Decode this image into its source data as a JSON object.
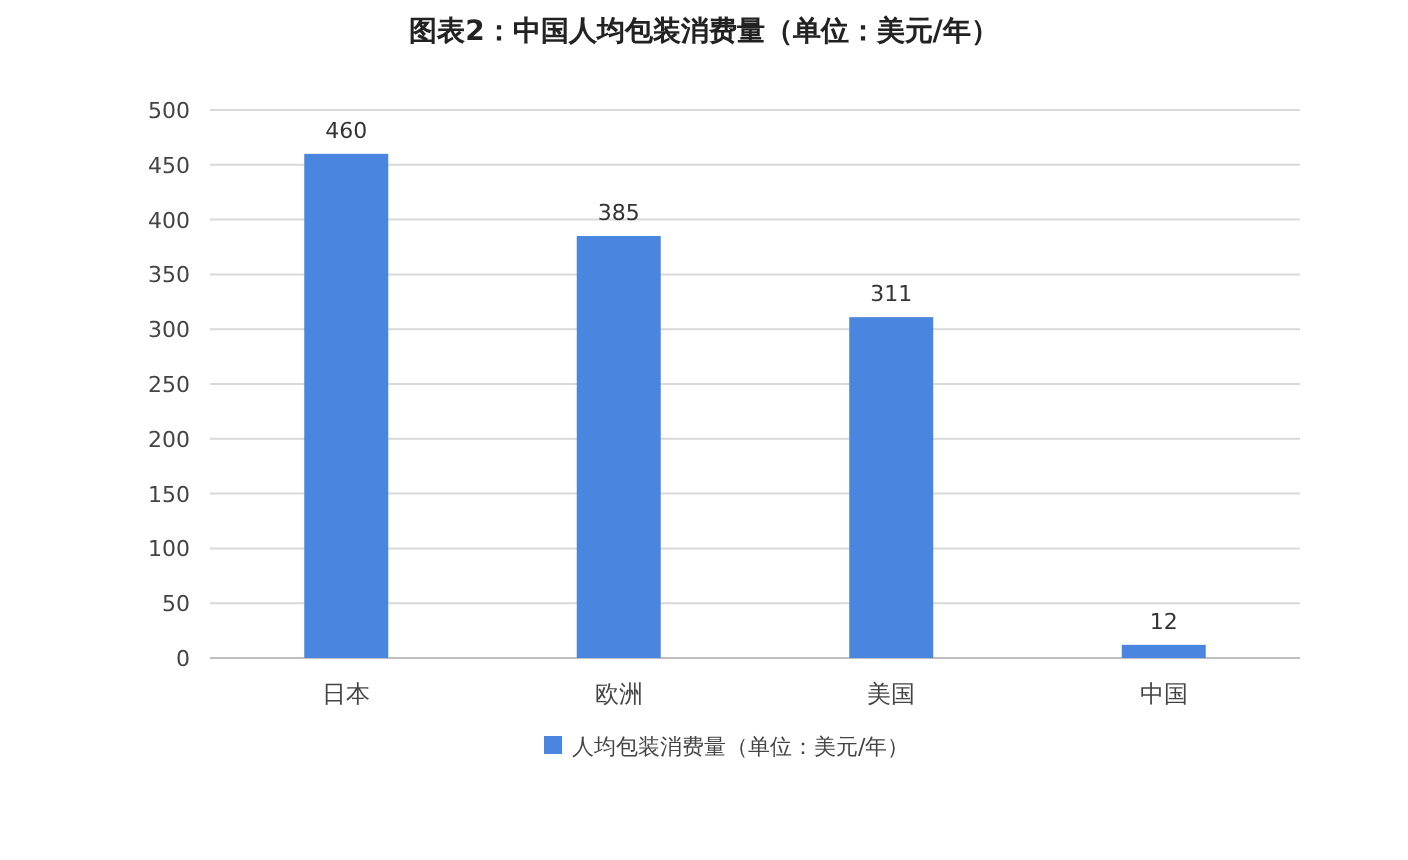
{
  "chart_data": {
    "type": "bar",
    "title": "图表2：中国人均包装消费量（单位：美元/年）",
    "categories": [
      "日本",
      "欧洲",
      "美国",
      "中国"
    ],
    "series": [
      {
        "name": "人均包装消费量（单位：美元/年）",
        "color": "#4a86e0",
        "values": [
          460,
          385,
          311,
          12
        ]
      }
    ],
    "ylim": [
      0,
      500
    ],
    "yticks": [
      0,
      50,
      100,
      150,
      200,
      250,
      300,
      350,
      400,
      450,
      500
    ],
    "grid": "y",
    "legend": "bottom",
    "data_labels": true
  }
}
